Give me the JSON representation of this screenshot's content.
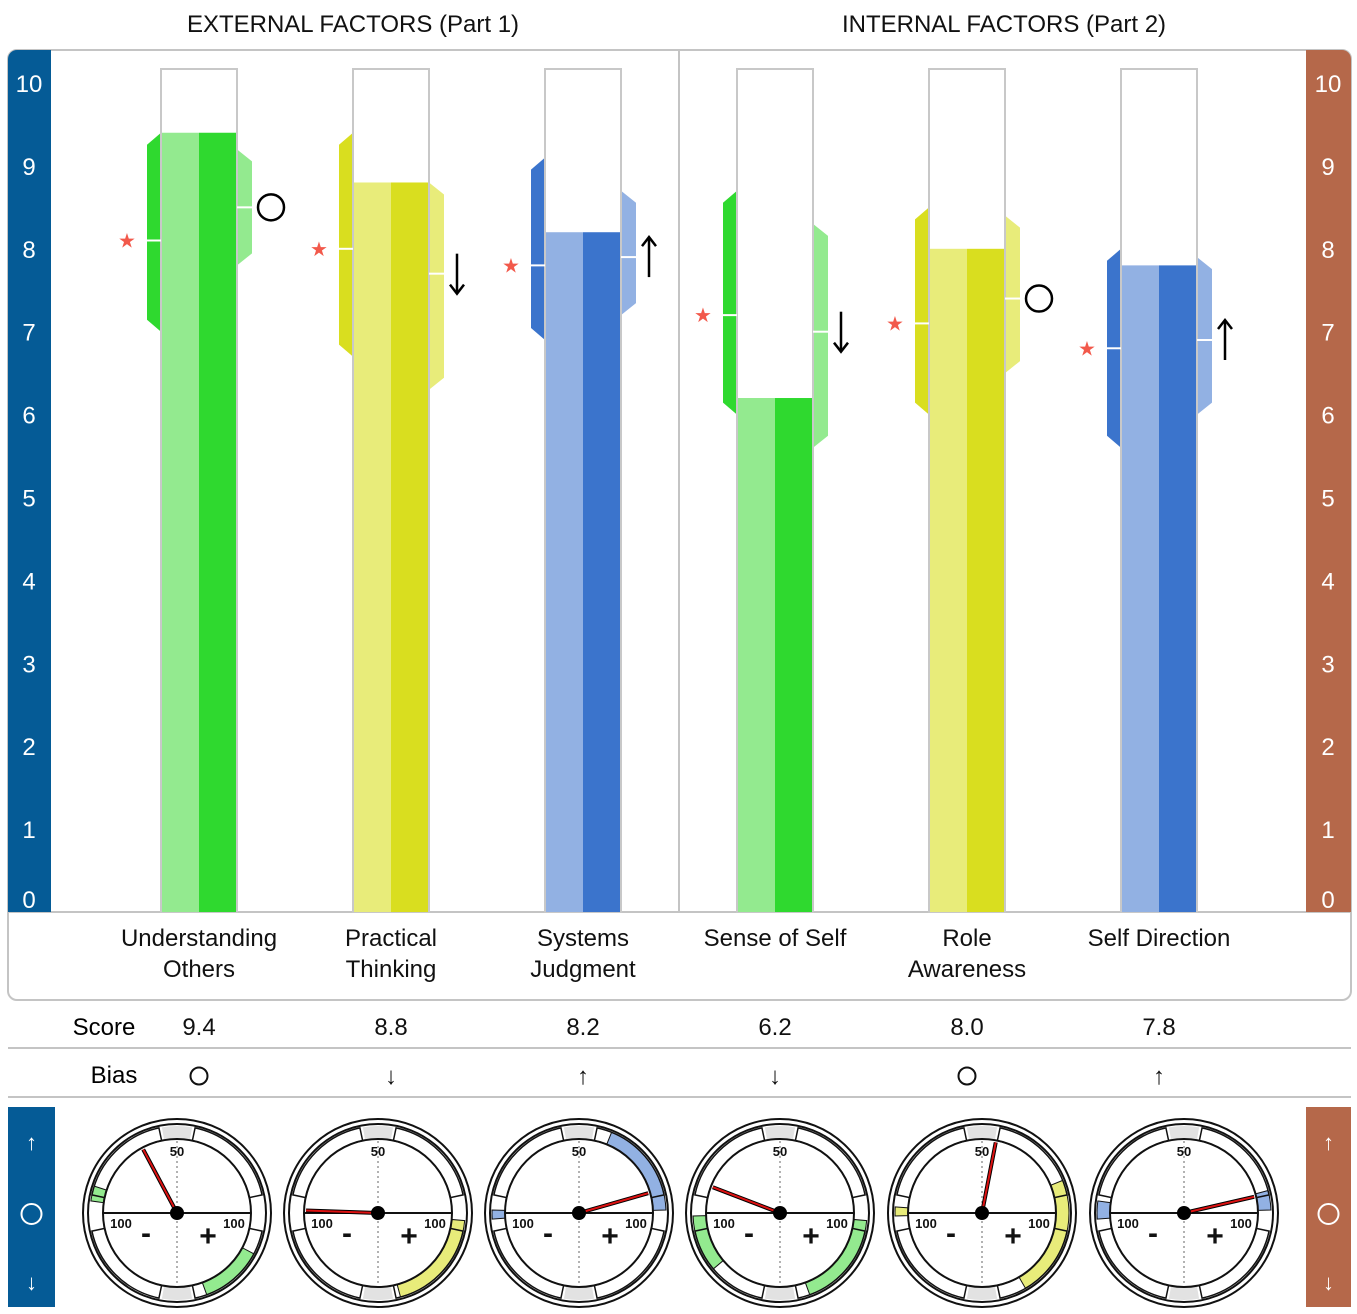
{
  "headers": {
    "part1": "EXTERNAL FACTORS (Part 1)",
    "part2": "INTERNAL FACTORS (Part 2)"
  },
  "colors": {
    "left_axis": "#055b96",
    "right_axis": "#b5684a",
    "green_dark": "#2fd92f",
    "green_light": "#93ea8f",
    "yellow_dark": "#d9de1f",
    "yellow_light": "#e8ec7a",
    "blue_dark": "#3b74cc",
    "blue_light": "#92b1e3",
    "star": "#f2594b",
    "needle": "#dd1111"
  },
  "row_labels": {
    "score": "Score",
    "bias": "Bias"
  },
  "side_legend": {
    "up": "↑",
    "circle": "◯",
    "down": "↓"
  },
  "dial_labels": {
    "top": "50",
    "left": "100",
    "right": "100",
    "minus": "-",
    "plus": "+"
  },
  "chart_data": {
    "type": "bar",
    "ylim": [
      0,
      10
    ],
    "yticks": [
      "0",
      "1",
      "2",
      "3",
      "4",
      "5",
      "6",
      "7",
      "8",
      "9",
      "10"
    ],
    "categories": [
      {
        "name": "Understanding Others",
        "lines": [
          "Understanding",
          "Others"
        ],
        "group": "external",
        "color": "green",
        "score": 9.4,
        "score_label": "9.4",
        "band": [
          7.0,
          9.4
        ],
        "right_band": [
          7.8,
          9.2
        ],
        "star": 8.1,
        "bias_marker": 8.5,
        "bias": "○",
        "bias_label": "O"
      },
      {
        "name": "Practical Thinking",
        "lines": [
          "Practical",
          "Thinking"
        ],
        "group": "external",
        "color": "yellow",
        "score": 8.8,
        "score_label": "8.8",
        "band": [
          6.7,
          9.4
        ],
        "right_band": [
          6.3,
          8.8
        ],
        "star": 8.0,
        "bias_marker": 7.7,
        "bias": "↓",
        "bias_label": "↓"
      },
      {
        "name": "Systems Judgment",
        "lines": [
          "Systems",
          "Judgment"
        ],
        "group": "external",
        "color": "blue",
        "score": 8.2,
        "score_label": "8.2",
        "band": [
          6.9,
          9.1
        ],
        "right_band": [
          7.2,
          8.7
        ],
        "star": 7.8,
        "bias_marker": 7.9,
        "bias": "↑",
        "bias_label": "↑"
      },
      {
        "name": "Sense of Self",
        "lines": [
          "Sense of Self"
        ],
        "group": "internal",
        "color": "green",
        "score": 6.2,
        "score_label": "6.2",
        "band": [
          6.0,
          8.7
        ],
        "right_band": [
          5.6,
          8.3
        ],
        "star": 7.2,
        "bias_marker": 7.0,
        "bias": "↓",
        "bias_label": "↓"
      },
      {
        "name": "Role Awareness",
        "lines": [
          "Role",
          "Awareness"
        ],
        "group": "internal",
        "color": "yellow",
        "score": 8.0,
        "score_label": "8.0",
        "band": [
          6.0,
          8.5
        ],
        "right_band": [
          6.5,
          8.4
        ],
        "star": 7.1,
        "bias_marker": 7.4,
        "bias": "○",
        "bias_label": "O"
      },
      {
        "name": "Self Direction",
        "lines": [
          "Self Direction"
        ],
        "group": "internal",
        "color": "blue",
        "score": 7.8,
        "score_label": "7.8",
        "band": [
          5.6,
          8.0
        ],
        "right_band": [
          6.0,
          7.9
        ],
        "star": 6.8,
        "bias_marker": 6.9,
        "bias": "↑",
        "bias_label": "↑"
      }
    ],
    "dials": [
      {
        "needle_angle": 118,
        "arcs": [
          [
            -70,
            -28
          ],
          [
            162,
            172
          ]
        ]
      },
      {
        "needle_angle": 178,
        "arcs": [
          [
            -75,
            -5
          ]
        ]
      },
      {
        "needle_angle": 16,
        "arcs": [
          [
            2,
            68
          ],
          [
            178,
            184
          ]
        ]
      },
      {
        "needle_angle": 159,
        "arcs": [
          [
            -70,
            -5
          ],
          [
            182,
            220
          ]
        ]
      },
      {
        "needle_angle": 79,
        "arcs": [
          [
            -60,
            22
          ],
          [
            176,
            182
          ]
        ]
      },
      {
        "needle_angle": 13,
        "arcs": [
          [
            2,
            15
          ],
          [
            172,
            184
          ]
        ]
      }
    ]
  }
}
